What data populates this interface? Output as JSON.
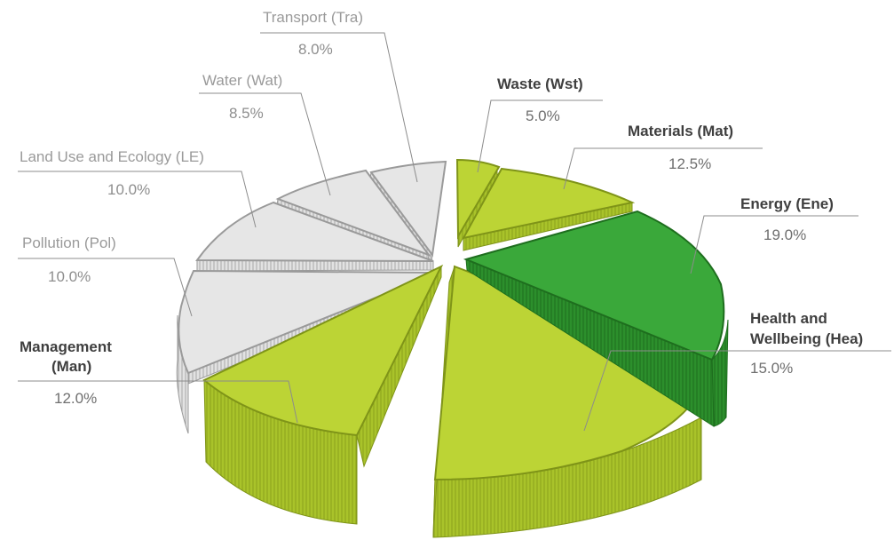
{
  "chart_data": {
    "type": "pie",
    "title": "",
    "slices": [
      {
        "label": "Waste (Wst)",
        "value_label": "5.0%",
        "value": 5.0,
        "highlight": true,
        "color": "#b8cf2e"
      },
      {
        "label": "Materials (Mat)",
        "value_label": "12.5%",
        "value": 12.5,
        "highlight": true,
        "color": "#b8cf2e"
      },
      {
        "label": "Energy (Ene)",
        "value_label": "19.0%",
        "value": 19.0,
        "highlight": true,
        "color": "#3aa83a"
      },
      {
        "label": "Health and Wellbeing (Hea)",
        "label_lines": [
          "Health and",
          "Wellbeing (Hea)"
        ],
        "value_label": "15.0%",
        "value": 15.0,
        "highlight": true,
        "color": "#b8cf2e"
      },
      {
        "label": "Management (Man)",
        "label_lines": [
          "Management",
          "(Man)"
        ],
        "value_label": "12.0%",
        "value": 12.0,
        "highlight": true,
        "color": "#b8cf2e"
      },
      {
        "label": "Pollution (Pol)",
        "value_label": "10.0%",
        "value": 10.0,
        "highlight": false,
        "color": "#e6e6e6"
      },
      {
        "label": "Land Use and Ecology (LE)",
        "value_label": "10.0%",
        "value": 10.0,
        "highlight": false,
        "color": "#e6e6e6"
      },
      {
        "label": "Water (Wat)",
        "value_label": "8.5%",
        "value": 8.5,
        "highlight": false,
        "color": "#e6e6e6"
      },
      {
        "label": "Transport (Tra)",
        "value_label": "8.0%",
        "value": 8.0,
        "highlight": false,
        "color": "#e6e6e6"
      }
    ]
  }
}
